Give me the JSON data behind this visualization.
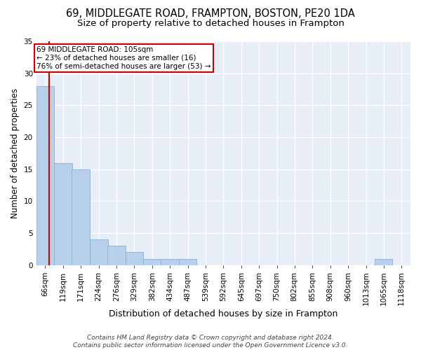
{
  "title1": "69, MIDDLEGATE ROAD, FRAMPTON, BOSTON, PE20 1DA",
  "title2": "Size of property relative to detached houses in Frampton",
  "xlabel": "Distribution of detached houses by size in Frampton",
  "ylabel": "Number of detached properties",
  "bins": [
    "66sqm",
    "119sqm",
    "171sqm",
    "224sqm",
    "276sqm",
    "329sqm",
    "382sqm",
    "434sqm",
    "487sqm",
    "539sqm",
    "592sqm",
    "645sqm",
    "697sqm",
    "750sqm",
    "802sqm",
    "855sqm",
    "908sqm",
    "960sqm",
    "1013sqm",
    "1065sqm",
    "1118sqm"
  ],
  "bin_edges": [
    66,
    119,
    171,
    224,
    276,
    329,
    382,
    434,
    487,
    539,
    592,
    645,
    697,
    750,
    802,
    855,
    908,
    960,
    1013,
    1065,
    1118
  ],
  "counts": [
    28,
    16,
    15,
    4,
    3,
    2,
    1,
    1,
    1,
    0,
    0,
    0,
    0,
    0,
    0,
    0,
    0,
    0,
    0,
    1,
    0
  ],
  "bar_color": "#b8d0ea",
  "bar_edge_color": "#8ab0d0",
  "property_size": 105,
  "vline_color": "#cc0000",
  "annotation_text": "69 MIDDLEGATE ROAD: 105sqm\n← 23% of detached houses are smaller (16)\n76% of semi-detached houses are larger (53) →",
  "annotation_box_color": "#ffffff",
  "annotation_box_edge": "#cc0000",
  "ylim": [
    0,
    35
  ],
  "yticks": [
    0,
    5,
    10,
    15,
    20,
    25,
    30,
    35
  ],
  "footer": "Contains HM Land Registry data © Crown copyright and database right 2024.\nContains public sector information licensed under the Open Government Licence v3.0.",
  "bg_color": "#e8eef8",
  "grid_color": "#ffffff",
  "title1_fontsize": 10.5,
  "title2_fontsize": 9.5,
  "xlabel_fontsize": 9,
  "ylabel_fontsize": 8.5,
  "tick_fontsize": 7.5,
  "footer_fontsize": 6.5
}
